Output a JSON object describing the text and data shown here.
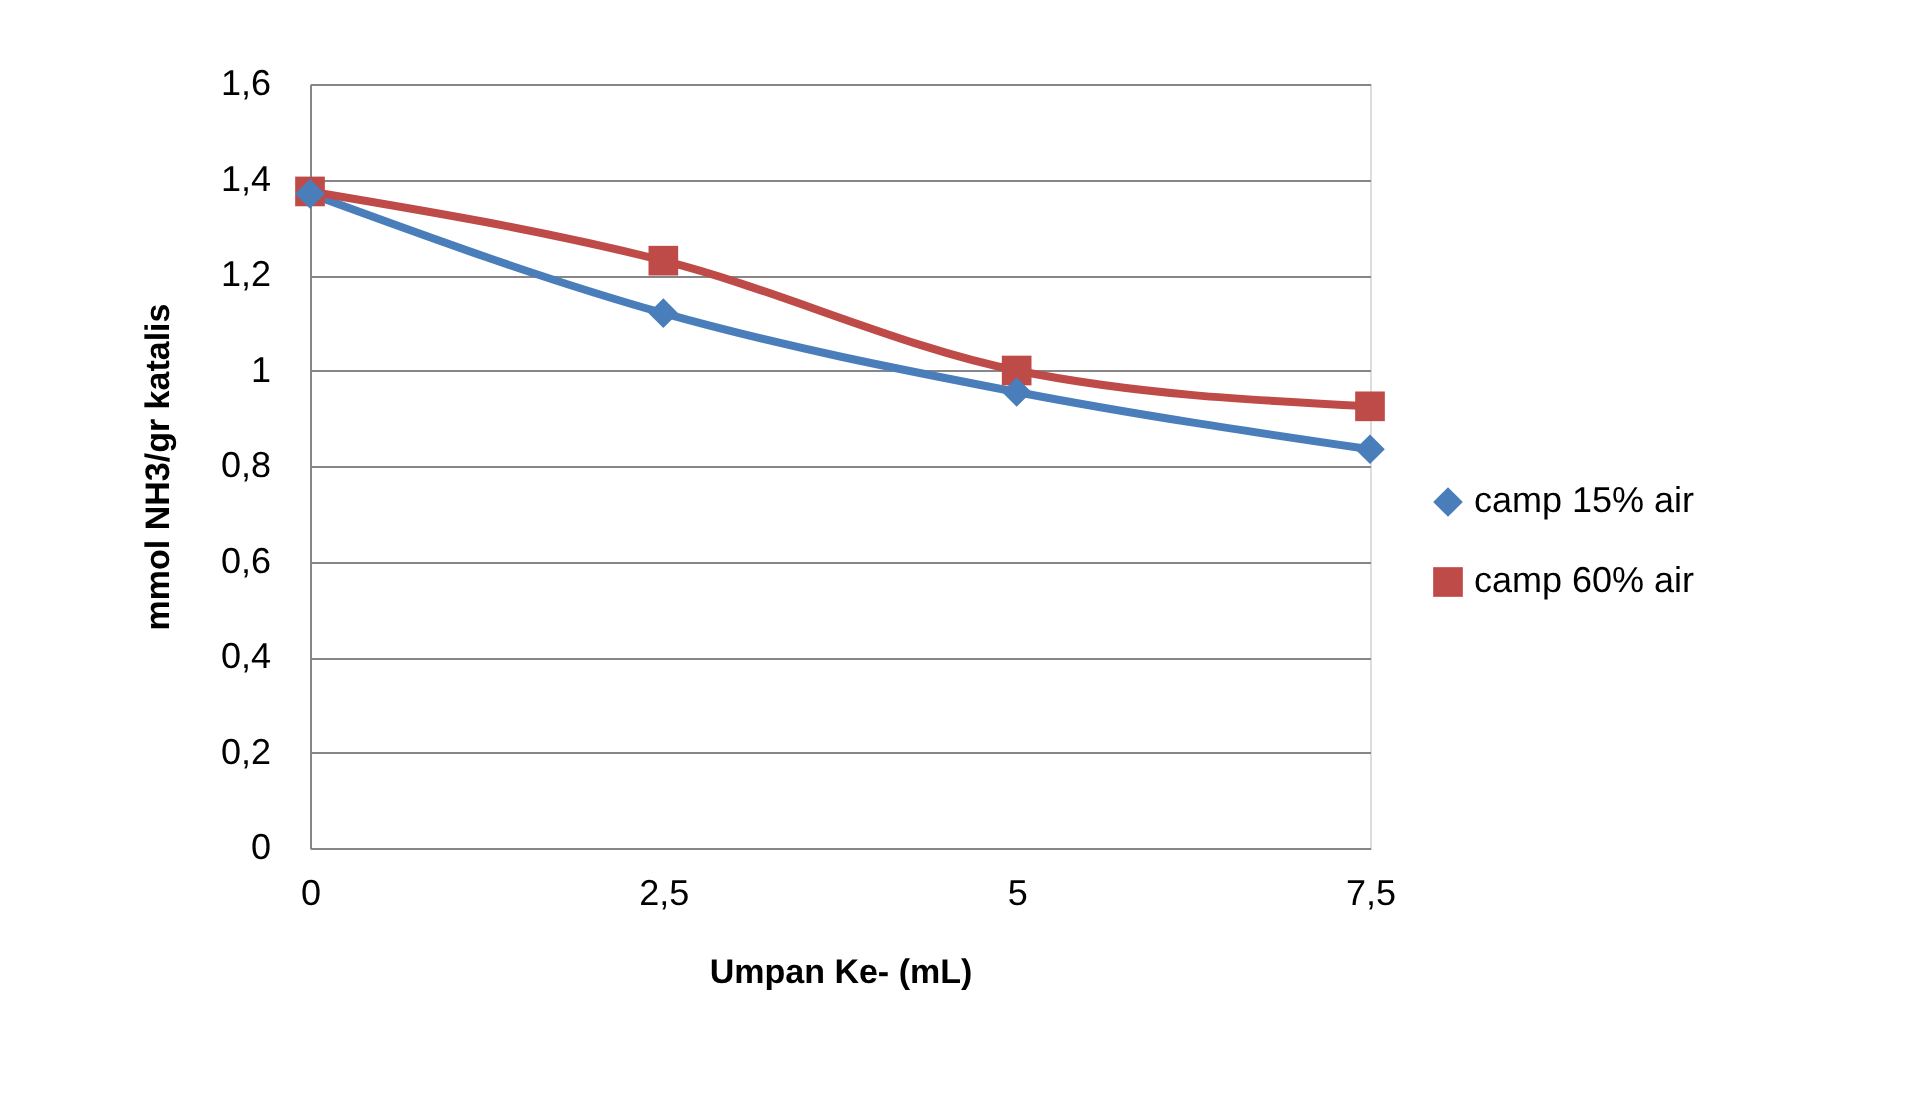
{
  "chart_data": {
    "type": "line",
    "xlabel": "Umpan Ke- (mL)",
    "ylabel": "mmol NH3/gr katalis",
    "categories": [
      "0",
      "2,5",
      "5",
      "7,5"
    ],
    "series": [
      {
        "name": "camp 15% air",
        "color": "#4a7ebb",
        "marker": "diamond",
        "values": [
          1.37,
          1.12,
          0.955,
          0.835
        ]
      },
      {
        "name": "camp 60% air",
        "color": "#be4b48",
        "marker": "square",
        "values": [
          1.375,
          1.23,
          1.0,
          0.925
        ]
      }
    ],
    "ylim": [
      0,
      1.6
    ],
    "yticks": [
      0,
      {
        "value": 0.2,
        "label": "0,2"
      },
      {
        "value": 0.4,
        "label": "0,4"
      },
      {
        "value": 0.6,
        "label": "0,6"
      },
      {
        "value": 0.8,
        "label": "0,8"
      },
      1,
      {
        "value": 1.2,
        "label": "1,2"
      },
      {
        "value": 1.4,
        "label": "1,4"
      },
      {
        "value": 1.6,
        "label": "1,6"
      }
    ],
    "grid": "y",
    "legend": "right",
    "line_style": "solid"
  }
}
